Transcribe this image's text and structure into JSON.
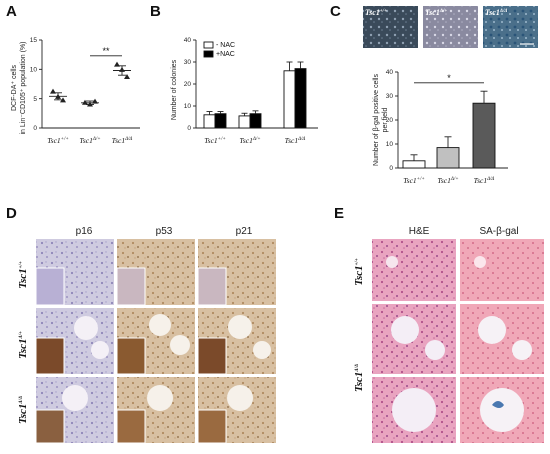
{
  "panels": {
    "A": {
      "letter": "A"
    },
    "B": {
      "letter": "B"
    },
    "C": {
      "letter": "C"
    },
    "D": {
      "letter": "D"
    },
    "E": {
      "letter": "E"
    }
  },
  "chart_data": [
    {
      "type": "scatter",
      "panel": "A",
      "ylabel_line1": "DCF-DA⁺ cells",
      "ylabel_line2": "in Lin⁻CD105⁺ population (%)",
      "ylim": [
        0,
        15
      ],
      "yticks": [
        0,
        5,
        10,
        15
      ],
      "categories": [
        "Tsc1+/+",
        "Tsc1Δ/+",
        "Tsc1Δ/Δ"
      ],
      "category_parts": [
        [
          "Tsc1",
          "+/+"
        ],
        [
          "Tsc1",
          "Δ/+"
        ],
        [
          "Tsc1",
          "Δ/Δ"
        ]
      ],
      "points": [
        [
          6.2,
          5.3,
          4.7
        ],
        [
          4.3,
          4.0,
          4.5
        ],
        [
          10.8,
          9.9,
          8.7
        ]
      ],
      "means": [
        5.4,
        4.3,
        9.8
      ],
      "errors": [
        0.6,
        0.3,
        0.8
      ],
      "annotation": "**",
      "annotation_pair": [
        1,
        2
      ]
    },
    {
      "type": "bar",
      "panel": "B",
      "ylabel": "Number of colonies",
      "ylim": [
        0,
        40
      ],
      "yticks": [
        0,
        10,
        20,
        30,
        40
      ],
      "categories": [
        "Tsc1+/+",
        "Tsc1Δ/+",
        "Tsc1Δ/Δ"
      ],
      "category_parts": [
        [
          "Tsc1",
          "+/+"
        ],
        [
          "Tsc1",
          "Δ/+"
        ],
        [
          "Tsc1",
          "Δ/Δ"
        ]
      ],
      "series": [
        {
          "name": "- NAC",
          "values": [
            6,
            5.5,
            26
          ],
          "errors": [
            1.5,
            1.2,
            4
          ],
          "color": "#ffffff"
        },
        {
          "name": "+NAC",
          "values": [
            6.5,
            6.5,
            27
          ],
          "errors": [
            1.0,
            1.3,
            3
          ],
          "color": "#000000"
        }
      ],
      "legend": "top-left"
    },
    {
      "type": "bar",
      "panel": "C",
      "ylabel_line1": "Number of β-gal positive cells",
      "ylabel_line2": "per field",
      "ylim": [
        0,
        40
      ],
      "yticks": [
        0,
        10,
        20,
        30,
        40
      ],
      "categories": [
        "Tsc1+/+",
        "Tsc1Δ/+",
        "Tsc1Δ/Δ"
      ],
      "category_parts": [
        [
          "Tsc1",
          "+/+"
        ],
        [
          "Tsc1",
          "Δ/+"
        ],
        [
          "Tsc1",
          "Δ/Δ"
        ]
      ],
      "values": [
        3,
        8.5,
        27
      ],
      "errors": [
        2.5,
        4.5,
        5
      ],
      "colors": [
        "#ffffff",
        "#c0c0c0",
        "#5a5a5a"
      ],
      "annotation": "*",
      "annotation_pair": [
        0,
        2
      ]
    }
  ],
  "panel_c_images": [
    {
      "label_base": "Tsc1",
      "label_sup": "+/+"
    },
    {
      "label_base": "Tsc1",
      "label_sup": "Δ/+"
    },
    {
      "label_base": "Tsc1",
      "label_sup": "Δ/Δ"
    }
  ],
  "panel_d": {
    "columns": [
      "p16",
      "p53",
      "p21"
    ],
    "rows": [
      {
        "base": "Tsc1",
        "sup": "+/+"
      },
      {
        "base": "Tsc1",
        "sup": "Δ/+"
      },
      {
        "base": "Tsc1",
        "sup": "Δ/Δ"
      }
    ]
  },
  "panel_e": {
    "columns": [
      "H&E",
      "SA-β-gal"
    ],
    "rows": [
      {
        "base": "Tsc1",
        "sup": "+/+"
      },
      {
        "base": "Tsc1",
        "sup": "Δ/Δ"
      }
    ]
  }
}
